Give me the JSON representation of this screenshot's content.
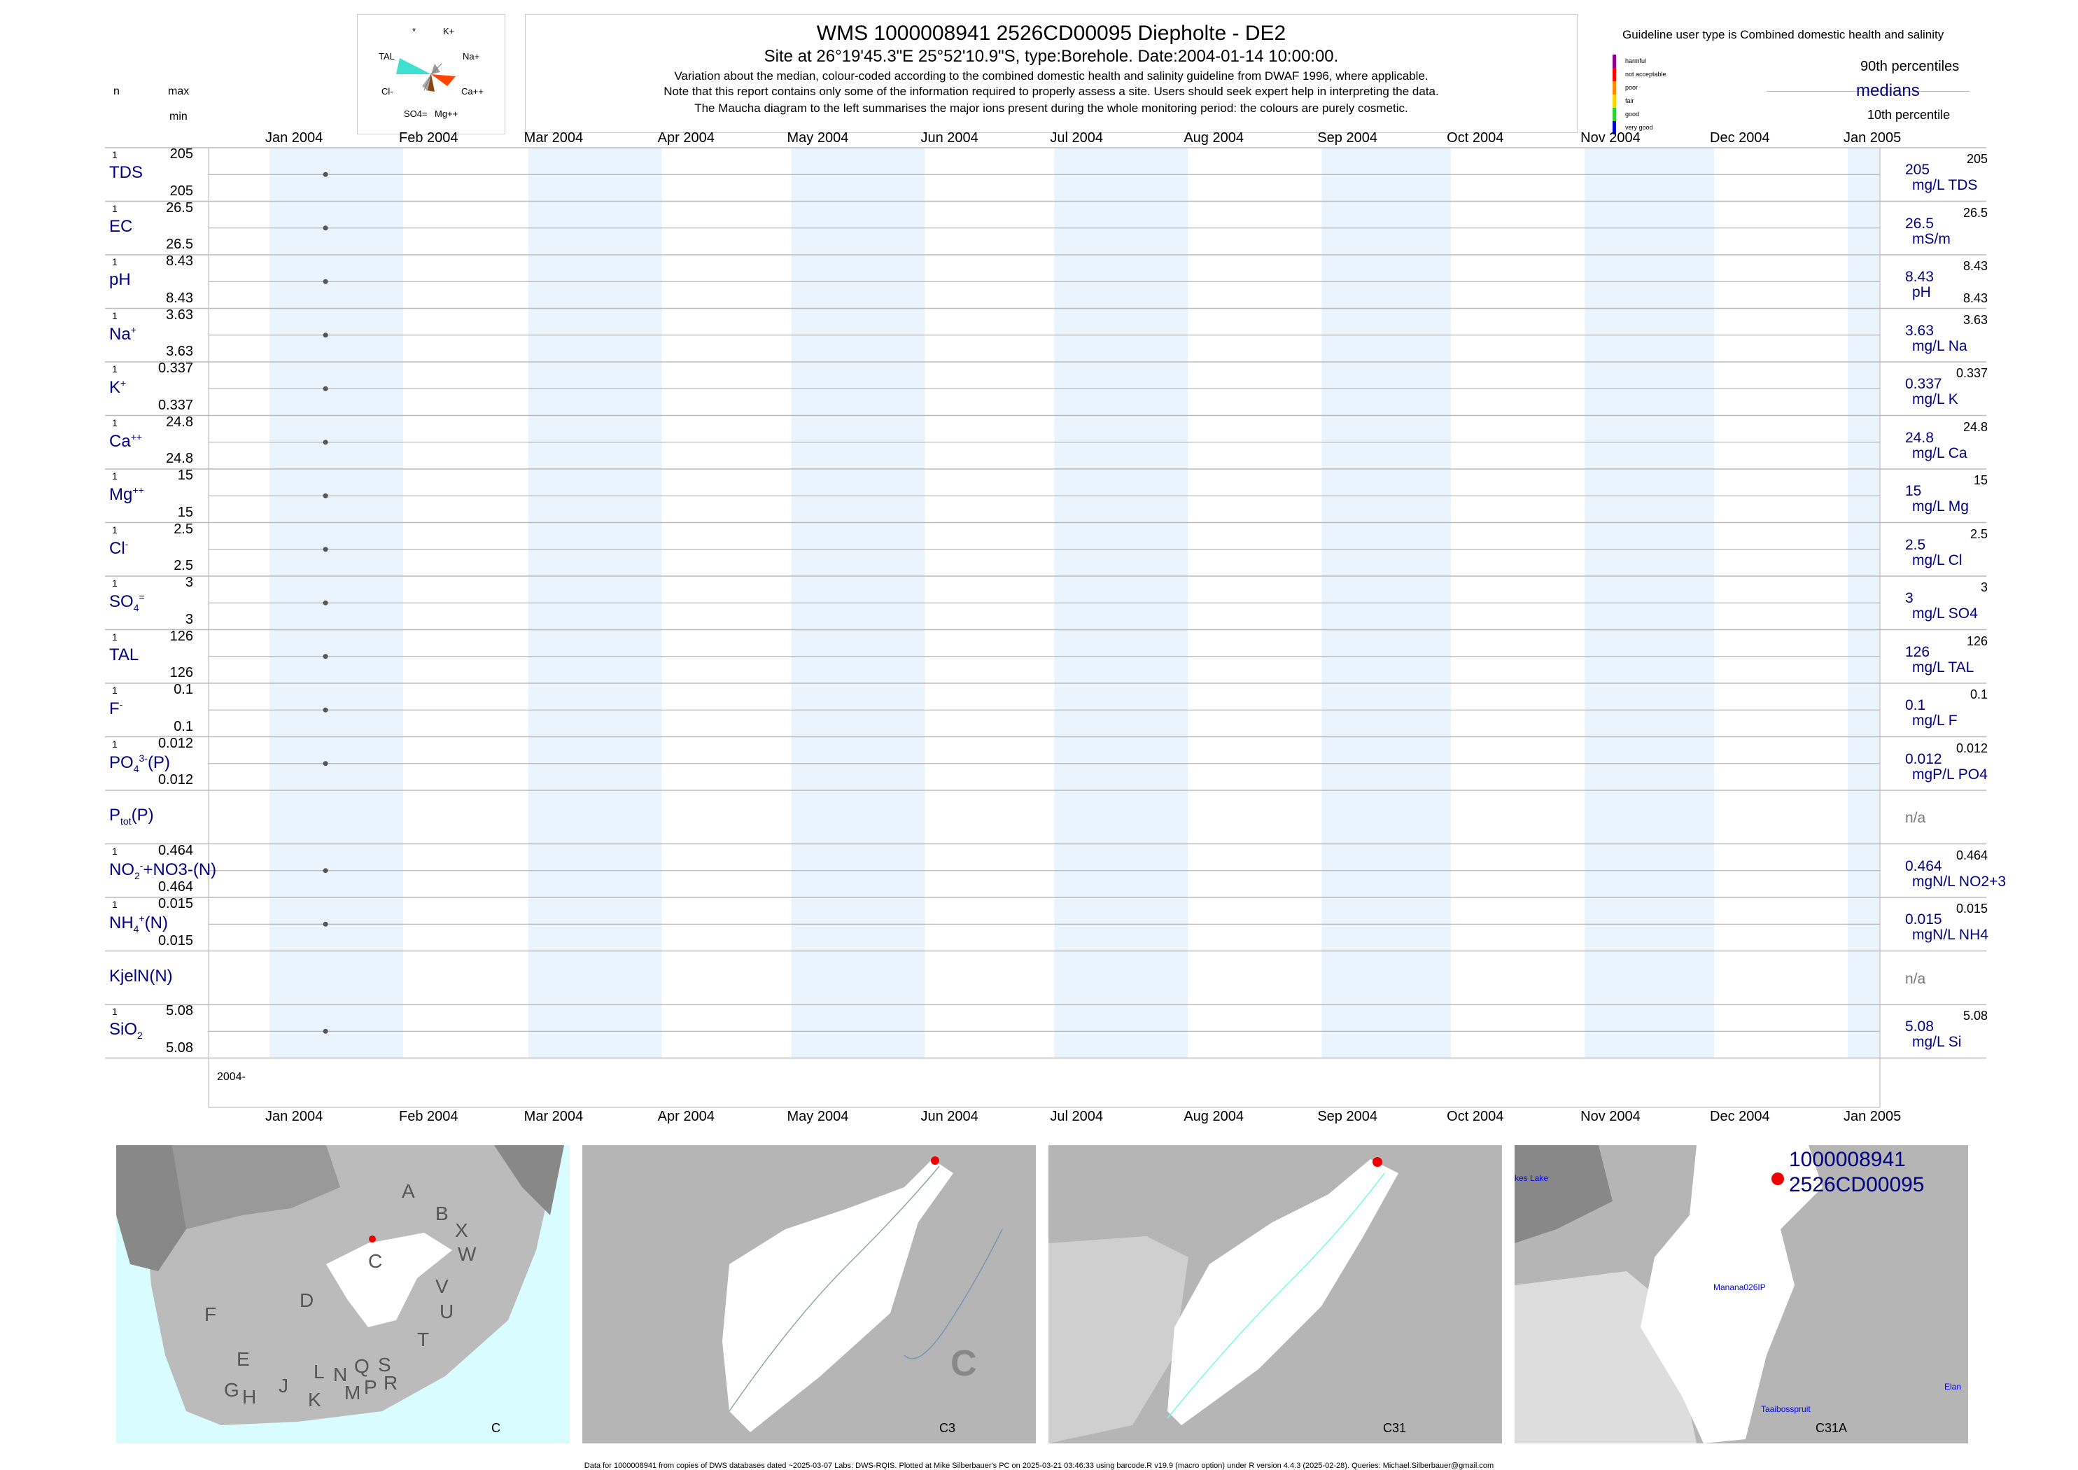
{
  "header": {
    "title": "WMS 1000008941 2526CD00095 Diepholte - DE2",
    "site_line": "Site at 26°19'45.3\"E 25°52'10.9\"S, type:Borehole. Date:2004-01-14 10:00:00.",
    "note1": "Variation about the median,  colour-coded according to the combined domestic health and salinity guideline from DWAF 1996, where applicable.",
    "note2": "Note that this report contains only some of the information required to properly assess a site. Users should seek expert help in interpreting the data.",
    "note3": "The Maucha diagram to the left summarises the major ions present during the whole monitoring period: the colours are purely cosmetic."
  },
  "maucha": {
    "labels": [
      "*",
      "K+",
      "Na+",
      "Ca++",
      "Mg++",
      "SO4=",
      "Cl-",
      "TAL"
    ]
  },
  "left_header": {
    "n": "n",
    "max": "max",
    "min": "min"
  },
  "legend": {
    "title": "Guideline user type is Combined domestic health and salinity",
    "categories": [
      "harmful",
      "not acceptable",
      "poor",
      "fair",
      "good",
      "very good"
    ],
    "colors": [
      "#8B008B",
      "#FF0000",
      "#FF8C00",
      "#FFD700",
      "#32CD32",
      "#0000CD"
    ],
    "p90": "90th percentiles",
    "medians": "medians",
    "p10": "10th percentile"
  },
  "chart_data": {
    "type": "scatter",
    "x_axis_labels": [
      "Jan 2004",
      "Feb 2004",
      "Mar 2004",
      "Apr 2004",
      "May 2004",
      "Jun 2004",
      "Jul 2004",
      "Aug 2004",
      "Sep 2004",
      "Oct 2004",
      "Nov 2004",
      "Dec 2004",
      "Jan 2005"
    ],
    "xlim": [
      "2004-01-01",
      "2005-01-01"
    ],
    "sample_date": "2004-01-14",
    "bottom_year_label": "2004-",
    "series": [
      {
        "name": "TDS",
        "sup": "",
        "sub": "",
        "n": "1",
        "max": "205",
        "min": "205",
        "median": "205",
        "unit": "mg/L TDS",
        "rmax": "205",
        "rmin": "",
        "values": [
          205
        ]
      },
      {
        "name": "EC",
        "sup": "",
        "sub": "",
        "n": "1",
        "max": "26.5",
        "min": "26.5",
        "median": "26.5",
        "unit": "mS/m",
        "rmax": "26.5",
        "rmin": "",
        "values": [
          26.5
        ]
      },
      {
        "name": "pH",
        "sup": "",
        "sub": "",
        "n": "1",
        "max": "8.43",
        "min": "8.43",
        "median": "8.43",
        "unit": "pH",
        "rmax": "8.43",
        "rmin": "8.43",
        "values": [
          8.43
        ]
      },
      {
        "name": "Na",
        "sup": "+",
        "sub": "",
        "n": "1",
        "max": "3.63",
        "min": "3.63",
        "median": "3.63",
        "unit": "mg/L Na",
        "rmax": "3.63",
        "rmin": "",
        "values": [
          3.63
        ]
      },
      {
        "name": "K",
        "sup": "+",
        "sub": "",
        "n": "1",
        "max": "0.337",
        "min": "0.337",
        "median": "0.337",
        "unit": "mg/L K",
        "rmax": "0.337",
        "rmin": "",
        "values": [
          0.337
        ]
      },
      {
        "name": "Ca",
        "sup": "++",
        "sub": "",
        "n": "1",
        "max": "24.8",
        "min": "24.8",
        "median": "24.8",
        "unit": "mg/L Ca",
        "rmax": "24.8",
        "rmin": "",
        "values": [
          24.8
        ]
      },
      {
        "name": "Mg",
        "sup": "++",
        "sub": "",
        "n": "1",
        "max": "15",
        "min": "15",
        "median": "15",
        "unit": "mg/L Mg",
        "rmax": "15",
        "rmin": "",
        "values": [
          15
        ]
      },
      {
        "name": "Cl",
        "sup": "-",
        "sub": "",
        "n": "1",
        "max": "2.5",
        "min": "2.5",
        "median": "2.5",
        "unit": "mg/L Cl",
        "rmax": "2.5",
        "rmin": "",
        "values": [
          2.5
        ]
      },
      {
        "name": "SO",
        "sup": "=",
        "sub": "4",
        "n": "1",
        "max": "3",
        "min": "3",
        "median": "3",
        "unit": "mg/L SO4",
        "rmax": "3",
        "rmin": "",
        "values": [
          3
        ]
      },
      {
        "name": "TAL",
        "sup": "",
        "sub": "",
        "n": "1",
        "max": "126",
        "min": "126",
        "median": "126",
        "unit": "mg/L TAL",
        "rmax": "126",
        "rmin": "",
        "values": [
          126
        ]
      },
      {
        "name": "F",
        "sup": "-",
        "sub": "",
        "n": "1",
        "max": "0.1",
        "min": "0.1",
        "median": "0.1",
        "unit": "mg/L F",
        "rmax": "0.1",
        "rmin": "",
        "values": [
          0.1
        ]
      },
      {
        "name": "PO",
        "sup": "3-",
        "sub": "4",
        "suffix": "(P)",
        "n": "1",
        "max": "0.012",
        "min": "0.012",
        "median": "0.012",
        "unit": "mgP/L PO4",
        "rmax": "0.012",
        "rmin": "",
        "values": [
          0.012
        ]
      },
      {
        "name": "P",
        "sup": "",
        "sub": "tot",
        "suffix": "(P)",
        "n": "",
        "max": "",
        "min": "",
        "median": "n/a",
        "unit": "",
        "rmax": "",
        "rmin": "",
        "values": []
      },
      {
        "name": "NO",
        "sup": "-",
        "sub": "2",
        "suffix": "+NO3-(N)",
        "n": "1",
        "max": "0.464",
        "min": "0.464",
        "median": "0.464",
        "unit": "mgN/L NO2+3",
        "rmax": "0.464",
        "rmin": "",
        "values": [
          0.464
        ]
      },
      {
        "name": "NH",
        "sup": "+",
        "sub": "4",
        "suffix": "(N)",
        "n": "1",
        "max": "0.015",
        "min": "0.015",
        "median": "0.015",
        "unit": "mgN/L NH4",
        "rmax": "0.015",
        "rmin": "",
        "values": [
          0.015
        ]
      },
      {
        "name": "KjelN(N)",
        "sup": "",
        "sub": "",
        "n": "",
        "max": "",
        "min": "",
        "median": "n/a",
        "unit": "",
        "rmax": "",
        "rmin": "",
        "values": []
      },
      {
        "name": "SiO",
        "sup": "",
        "sub": "2",
        "n": "1",
        "max": "5.08",
        "min": "5.08",
        "median": "5.08",
        "unit": "mg/L Si",
        "rmax": "5.08",
        "rmin": "",
        "values": [
          5.08
        ]
      }
    ]
  },
  "maps": {
    "map1": {
      "label": "C",
      "regions": [
        "A",
        "B",
        "X",
        "W",
        "C",
        "D",
        "V",
        "U",
        "F",
        "T",
        "E",
        "L",
        "N",
        "Q",
        "S",
        "G",
        "H",
        "J",
        "K",
        "M",
        "P",
        "R"
      ]
    },
    "map2": {
      "label": "C3",
      "big": "C"
    },
    "map3": {
      "label": "C31"
    },
    "map4": {
      "label": "C31A",
      "site_id": "1000008941",
      "site_code": "2526CD00095",
      "places": [
        "kes Lake",
        "Manana026IP",
        "Taaibosspruit",
        "Elan"
      ]
    }
  },
  "footer": "Data for 1000008941 from copies of DWS databases dated ~2025-03-07 Labs: DWS-RQIS. Plotted at Mike Silberbauer's PC on 2025-03-21 03:46:33 using barcode.R v19.9 (macro option) under R version 4.4.3 (2025-02-28). Queries: Michael.Silberbauer@gmail.com"
}
